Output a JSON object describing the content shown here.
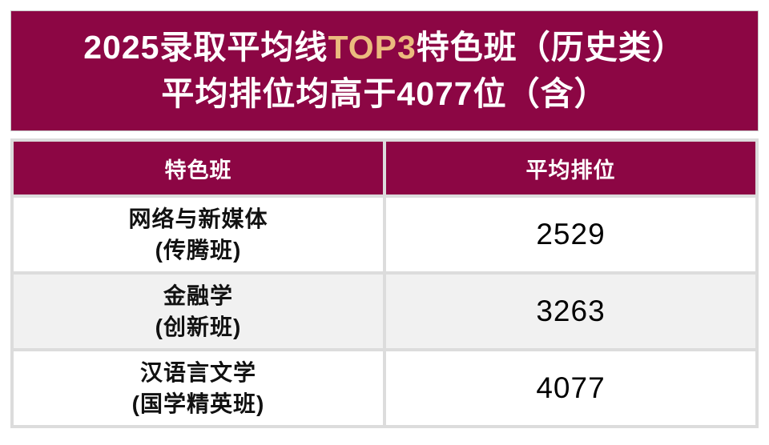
{
  "banner": {
    "line1_prefix": "2025录取平均线",
    "line1_highlight": "TOP3",
    "line1_suffix": "特色班（历史类）",
    "line2": "平均排位均高于4077位（含）",
    "bg_color": "#8C0644",
    "highlight_color": "#EBBB7E",
    "text_color": "#FFFFFF"
  },
  "table": {
    "columns": [
      "特色班",
      "平均排位"
    ],
    "rows": [
      {
        "class_name": "网络与新媒体",
        "class_sub": "(传腾班)",
        "rank": "2529"
      },
      {
        "class_name": "金融学",
        "class_sub": "(创新班)",
        "rank": "3263"
      },
      {
        "class_name": "汉语言文学",
        "class_sub": "(国学精英班)",
        "rank": "4077"
      }
    ],
    "header_bg_color": "#8C0644",
    "alt_row_color": "#F1F1F1",
    "border_color": "#DCDCDC"
  },
  "chart_data": {
    "type": "table",
    "title": "2025录取平均线TOP3特色班（历史类） 平均排位均高于4077位（含）",
    "columns": [
      "特色班",
      "平均排位"
    ],
    "rows": [
      [
        "网络与新媒体 (传腾班)",
        2529
      ],
      [
        "金融学 (创新班)",
        3263
      ],
      [
        "汉语言文学 (国学精英班)",
        4077
      ]
    ]
  }
}
